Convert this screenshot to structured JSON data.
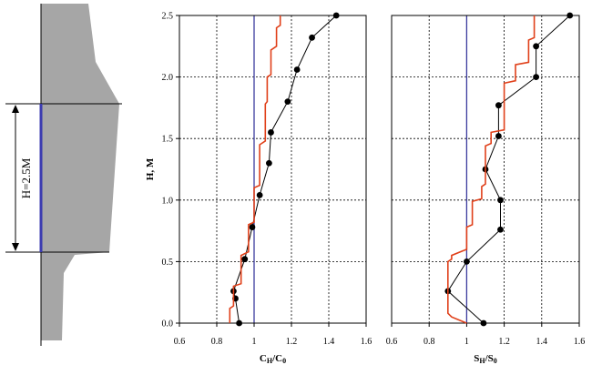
{
  "colors": {
    "section_fill": "#a6a6a6",
    "measured_series": "#000000",
    "computed_series": "#e0401a",
    "reference_line": "#3b3b9e",
    "section_height_line": "#3b3bb0",
    "grid": "#000000"
  },
  "section": {
    "height_label": "H=2.5M",
    "height_value": 2.5
  },
  "chart_data": [
    {
      "type": "line",
      "title": "",
      "xlabel": "C_H/C_0",
      "xlabel_main": "C",
      "xlabel_sub1": "H",
      "xlabel_mid": "/C",
      "xlabel_sub2": "0",
      "ylabel": "H, M",
      "xlim": [
        0.6,
        1.6
      ],
      "ylim": [
        0,
        2.5
      ],
      "xticks": [
        "0.6",
        "0.8",
        "1",
        "1.2",
        "1.4",
        "1.6"
      ],
      "yticks": [
        "0.0",
        "0.5",
        "1.0",
        "1.5",
        "2.0",
        "2.5"
      ],
      "grid": true,
      "reference_x": 1.0,
      "series": [
        {
          "role": "measured",
          "markers": true,
          "x": [
            0.92,
            0.9,
            0.89,
            0.95,
            0.99,
            1.03,
            1.08,
            1.09,
            1.18,
            1.23,
            1.31,
            1.44
          ],
          "y": [
            0.0,
            0.2,
            0.26,
            0.52,
            0.78,
            1.04,
            1.3,
            1.55,
            1.8,
            2.06,
            2.32,
            2.5
          ]
        },
        {
          "role": "computed",
          "markers": false,
          "x": [
            0.87,
            0.87,
            0.89,
            0.89,
            0.93,
            0.93,
            0.97,
            0.97,
            1.0,
            1.0,
            1.03,
            1.03,
            1.06,
            1.06,
            1.07,
            1.07,
            1.09,
            1.09,
            1.12,
            1.12,
            1.14,
            1.14
          ],
          "y": [
            0.0,
            0.12,
            0.14,
            0.3,
            0.32,
            0.55,
            0.58,
            0.8,
            0.82,
            1.1,
            1.12,
            1.45,
            1.48,
            1.78,
            1.8,
            2.0,
            2.02,
            2.22,
            2.25,
            2.4,
            2.42,
            2.5
          ]
        }
      ]
    },
    {
      "type": "line",
      "title": "",
      "xlabel": "S_H/S_0",
      "xlabel_main": "S",
      "xlabel_sub1": "H",
      "xlabel_mid": "/S",
      "xlabel_sub2": "0",
      "ylabel": "",
      "xlim": [
        0.6,
        1.6
      ],
      "ylim": [
        0,
        2.5
      ],
      "xticks": [
        "0.6",
        "0.8",
        "1",
        "1.2",
        "1.4",
        "1.6"
      ],
      "yticks": [],
      "grid": true,
      "reference_x": 1.0,
      "series": [
        {
          "role": "measured",
          "markers": true,
          "x": [
            1.09,
            0.9,
            1.0,
            1.18,
            1.18,
            1.1,
            1.17,
            1.17,
            1.37,
            1.37,
            1.55
          ],
          "y": [
            0.0,
            0.26,
            0.5,
            0.76,
            1.0,
            1.25,
            1.52,
            1.77,
            2.0,
            2.25,
            2.5
          ]
        },
        {
          "role": "computed",
          "markers": false,
          "x": [
            1.0,
            0.92,
            0.9,
            0.9,
            0.92,
            0.92,
            1.0,
            1.0,
            1.03,
            1.03,
            1.08,
            1.08,
            1.1,
            1.1,
            1.13,
            1.13,
            1.2,
            1.2,
            1.26,
            1.26,
            1.33,
            1.33,
            1.36,
            1.36
          ],
          "y": [
            0.0,
            0.05,
            0.08,
            0.5,
            0.52,
            0.55,
            0.6,
            0.78,
            0.8,
            0.99,
            1.01,
            1.11,
            1.13,
            1.44,
            1.46,
            1.55,
            1.57,
            1.95,
            1.97,
            2.1,
            2.12,
            2.3,
            2.32,
            2.5
          ]
        }
      ]
    }
  ]
}
